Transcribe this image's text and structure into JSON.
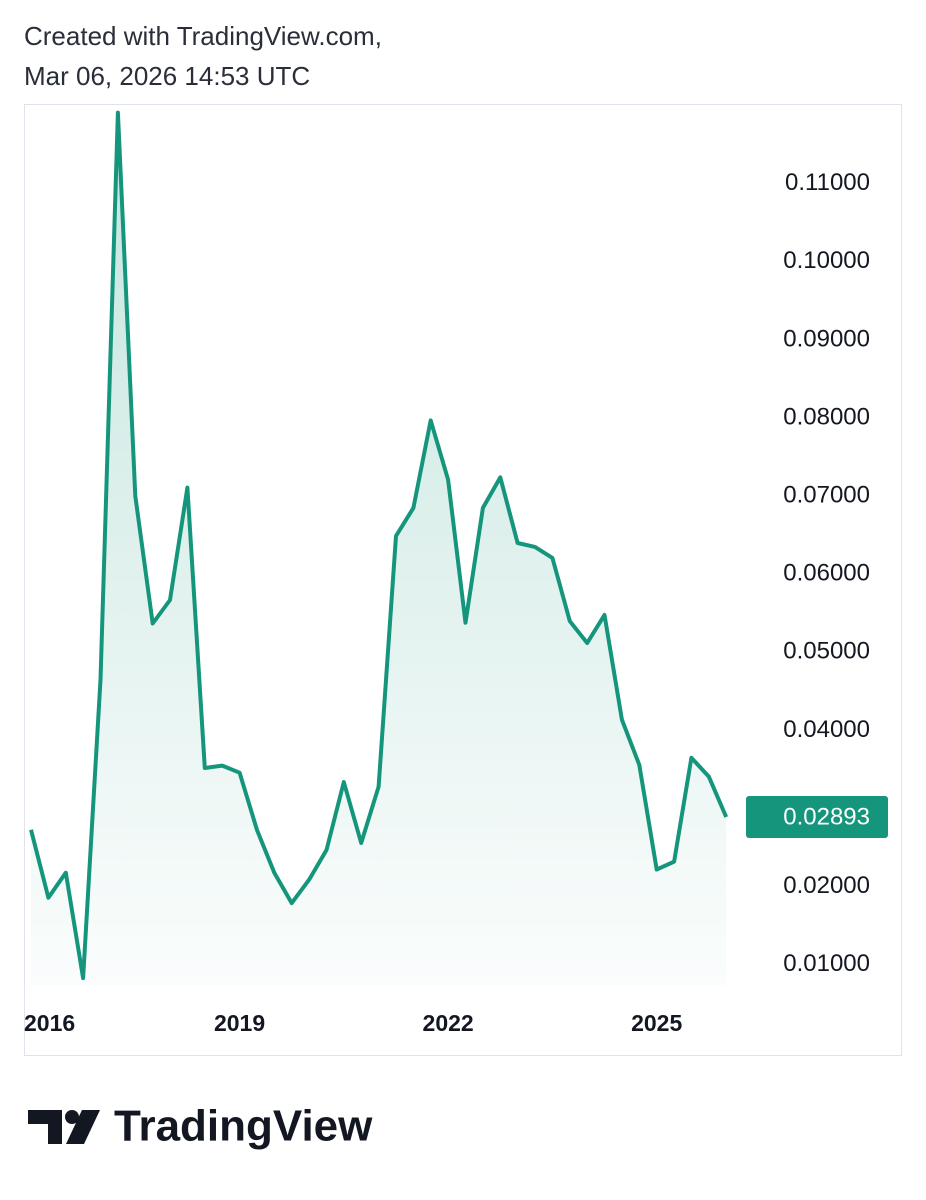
{
  "header": {
    "line1": "Created with TradingView.com,",
    "line2": "Mar 06, 2026 14:53 UTC"
  },
  "chart_data": {
    "type": "area",
    "color": "#15967c",
    "categories": [
      "2016",
      null,
      null,
      null,
      null,
      null,
      null,
      null,
      null,
      null,
      null,
      null,
      "2019",
      null,
      null,
      null,
      null,
      null,
      null,
      null,
      null,
      null,
      null,
      null,
      "2022",
      null,
      null,
      null,
      null,
      null,
      null,
      null,
      null,
      null,
      null,
      null,
      "2025",
      null,
      null,
      null,
      null
    ],
    "values": [
      0.0273,
      0.0186,
      0.0218,
      0.0083,
      0.0465,
      0.1191,
      0.07,
      0.0537,
      0.0567,
      0.0711,
      0.0352,
      0.0355,
      0.0346,
      0.0273,
      0.0218,
      0.0179,
      0.0209,
      0.0247,
      0.0334,
      0.0256,
      0.0328,
      0.0649,
      0.0685,
      0.0797,
      0.0721,
      0.0538,
      0.0685,
      0.0724,
      0.064,
      0.0635,
      0.0621,
      0.054,
      0.0512,
      0.0548,
      0.0414,
      0.0356,
      0.0222,
      0.0232,
      0.0365,
      0.0341,
      0.02893
    ],
    "value_labels": [
      null,
      null,
      null,
      null,
      null,
      null,
      null,
      null,
      null,
      null,
      null,
      null,
      null,
      null,
      null,
      null,
      null,
      null,
      null,
      null,
      null,
      null,
      null,
      null,
      null,
      null,
      null,
      null,
      null,
      null,
      null,
      null,
      null,
      null,
      null,
      null,
      null,
      null,
      null,
      null,
      "0.02893"
    ],
    "ylim": [
      0.0055,
      0.1202
    ],
    "yticks": [
      {
        "value": 0.01,
        "label": "0.01000"
      },
      {
        "value": 0.02,
        "label": "0.02000"
      },
      {
        "value": 0.04,
        "label": "0.04000"
      },
      {
        "value": 0.05,
        "label": "0.05000"
      },
      {
        "value": 0.06,
        "label": "0.06000"
      },
      {
        "value": 0.07,
        "label": "0.07000"
      },
      {
        "value": 0.08,
        "label": "0.08000"
      },
      {
        "value": 0.09,
        "label": "0.09000"
      },
      {
        "value": 0.1,
        "label": "0.10000"
      },
      {
        "value": 0.11,
        "label": "0.11000"
      }
    ]
  },
  "footer": {
    "brand": "TradingView"
  }
}
